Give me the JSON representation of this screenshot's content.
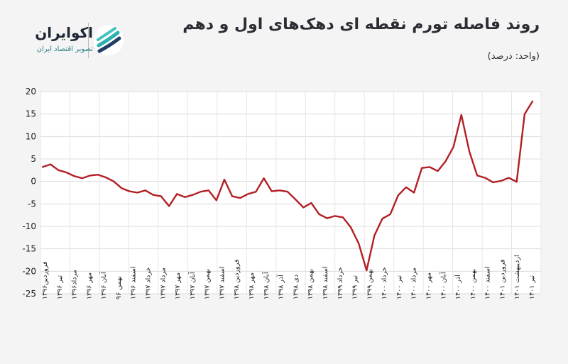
{
  "title": "روند فاصله تورم نقطه ای دهک‌های اول و دهم",
  "unit_label": "(واحد: درصد)",
  "logo": {
    "name": "اکوایران",
    "subtitle": "تصویر اقتصاد ایران"
  },
  "colors": {
    "line": "#b21f24",
    "background": "#f4f4f4",
    "plot_background": "#ffffff"
  },
  "chart_data": {
    "type": "line",
    "title": "روند فاصله تورم نقطه ای دهک‌های اول و دهم",
    "ylim": [
      -25,
      20
    ],
    "yticks": [
      20,
      15,
      10,
      5,
      0,
      -5,
      -10,
      -15,
      -20,
      -25
    ],
    "ytick_labels": [
      "20",
      "15",
      "10",
      "5",
      "0",
      "-5",
      "-10",
      "-15",
      "-20",
      "-25"
    ],
    "grid": true,
    "xtick_labels": [
      "فروردین۱۳۹۶",
      "تیر ۱۳۹۶",
      "مرداد۱۳۹۶",
      "مهر ۱۳۹۶",
      "آبان ۱۳۹۶",
      "بهمن ۹۶",
      "اسفند ۱۳۹۶",
      "خرداد ۱۳۹۷",
      "مرداد ۱۳۹۷",
      "مهر ۱۳۹۷",
      "آبان ۱۳۹۷",
      "بهمن ۱۳۹۷",
      "اسفند ۱۳۹۷",
      "فروردین ۱۳۹۸",
      "مهر ۱۳۹۸",
      "آبان ۱۳۹۸",
      "آذر ۱۳۹۸",
      "دی ۱۳۹۸",
      "بهمن ۱۳۹۸",
      "اسفند ۱۳۹۸",
      "خرداد ۱۳۹۹",
      "تیر ۱۳۹۹",
      "بهمن ۱۳۹۹",
      "خرداد ۱۴۰۰",
      "تیر ۱۴۰۰",
      "مرداد ۱۴۰۰",
      "مهر ۱۴۰۰",
      "آبان ۱۴۰۰",
      "آذر ۱۴۰۰",
      "بهمن ۱۴۰۰",
      "اسفند ۱۴۰۰",
      "فروردین ۱۴۰۱",
      "اردیبهشت ۱۴۰۱",
      "تیر ۱۴۰۱"
    ],
    "values": [
      3.2,
      3.8,
      2.5,
      2.0,
      1.2,
      0.7,
      1.3,
      1.5,
      0.9,
      0.0,
      -1.5,
      -2.2,
      -2.5,
      -2.0,
      -3.0,
      -3.3,
      -5.5,
      -2.8,
      -3.5,
      -3.0,
      -2.3,
      -2.0,
      -4.2,
      0.4,
      -3.3,
      -3.7,
      -2.8,
      -2.3,
      0.7,
      -2.2,
      -2.0,
      -2.3,
      -4.0,
      -5.8,
      -4.8,
      -7.3,
      -8.2,
      -7.7,
      -8.0,
      -10.2,
      -13.8,
      -19.8,
      -12.0,
      -8.3,
      -7.3,
      -3.1,
      -1.3,
      -2.5,
      3.0,
      3.2,
      2.3,
      4.5,
      7.7,
      14.8,
      6.7,
      1.3,
      0.8,
      -0.2,
      0.1,
      0.8,
      -0.1,
      15.0,
      17.8
    ]
  }
}
